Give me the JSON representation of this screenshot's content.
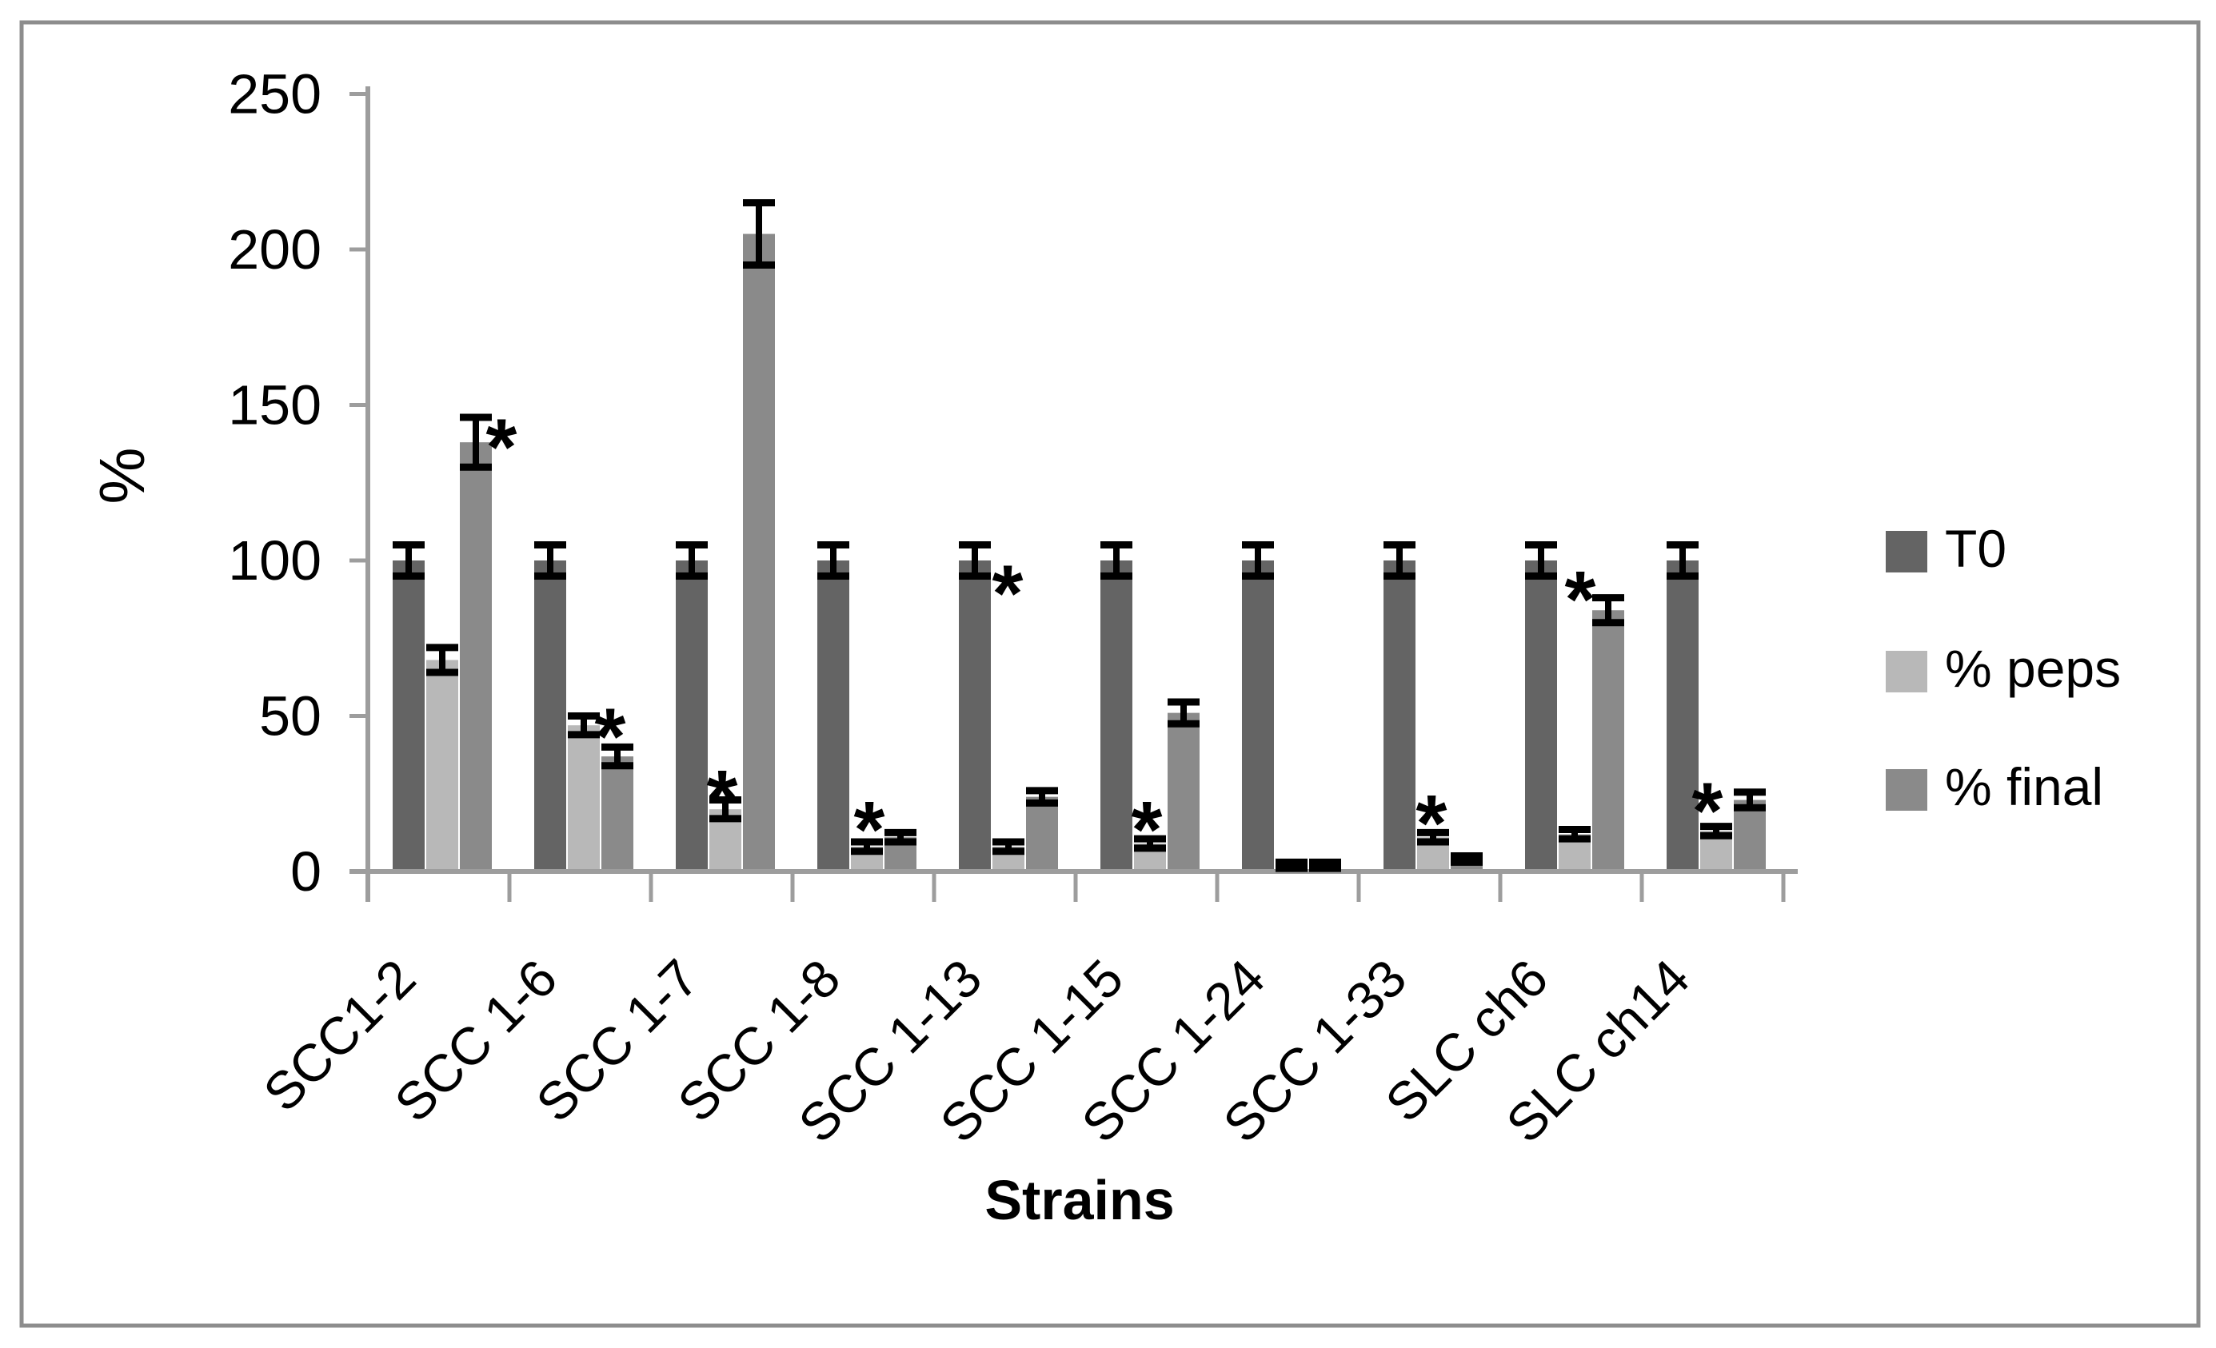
{
  "figure": {
    "background": "#ffffff",
    "border_color": "#8d8d8d",
    "axis_color": "#9d9d9d",
    "error_bar_color": "#000000"
  },
  "chart_data": {
    "type": "bar",
    "title": "",
    "xlabel": "Strains",
    "ylabel": "%",
    "ylim": [
      0,
      250
    ],
    "yticks": [
      0,
      50,
      100,
      150,
      200,
      250
    ],
    "grid": false,
    "legend_position": "right",
    "error_bars": true,
    "categories": [
      "SCC1-2",
      "SCC 1-6",
      "SCC 1-7",
      "SCC 1-8",
      "SCC 1-13",
      "SCC 1-15",
      "SCC 1-24",
      "SCC 1-33",
      "SLC ch6",
      "SLC ch14"
    ],
    "series": [
      {
        "name": "T0",
        "color": "#646464",
        "values": [
          100,
          100,
          100,
          100,
          100,
          100,
          100,
          100,
          100,
          100
        ],
        "errors": [
          5,
          5,
          5,
          5,
          5,
          5,
          5,
          5,
          5,
          5
        ]
      },
      {
        "name": "% peps",
        "color": "#b8b8b8",
        "values": [
          68,
          47,
          20,
          8,
          8,
          9,
          2,
          11,
          12,
          13
        ],
        "errors": [
          4,
          3,
          3,
          1.5,
          1.5,
          1.5,
          1,
          1.5,
          1.5,
          1.5
        ]
      },
      {
        "name": "% final",
        "color": "#8a8a8a",
        "values": [
          138,
          37,
          205,
          11,
          24,
          51,
          2,
          4,
          84,
          23
        ],
        "errors": [
          8,
          3,
          10,
          1.5,
          2,
          3.5,
          1,
          1,
          4,
          2.5
        ]
      }
    ],
    "annotations": [
      {
        "category": "SCC1-2",
        "symbol": "*",
        "dx": 167,
        "value": 141
      },
      {
        "category": "SCC 1-6",
        "symbol": "*",
        "dx": 126,
        "value": 48
      },
      {
        "category": "SCC 1-7",
        "symbol": "*",
        "dx": 89,
        "value": 28
      },
      {
        "category": "SCC 1-8",
        "symbol": "*",
        "dx": 96,
        "value": 18
      },
      {
        "category": "SCC 1-13",
        "symbol": "*",
        "dx": 92,
        "value": 94
      },
      {
        "category": "SCC 1-15",
        "symbol": "*",
        "dx": 89,
        "value": 18
      },
      {
        "category": "SCC 1-33",
        "symbol": "*",
        "dx": 91,
        "value": 20
      },
      {
        "category": "SLC ch6",
        "symbol": "*",
        "dx": 100,
        "value": 92
      },
      {
        "category": "SLC ch14",
        "symbol": "*",
        "dx": 82,
        "value": 24
      }
    ]
  }
}
